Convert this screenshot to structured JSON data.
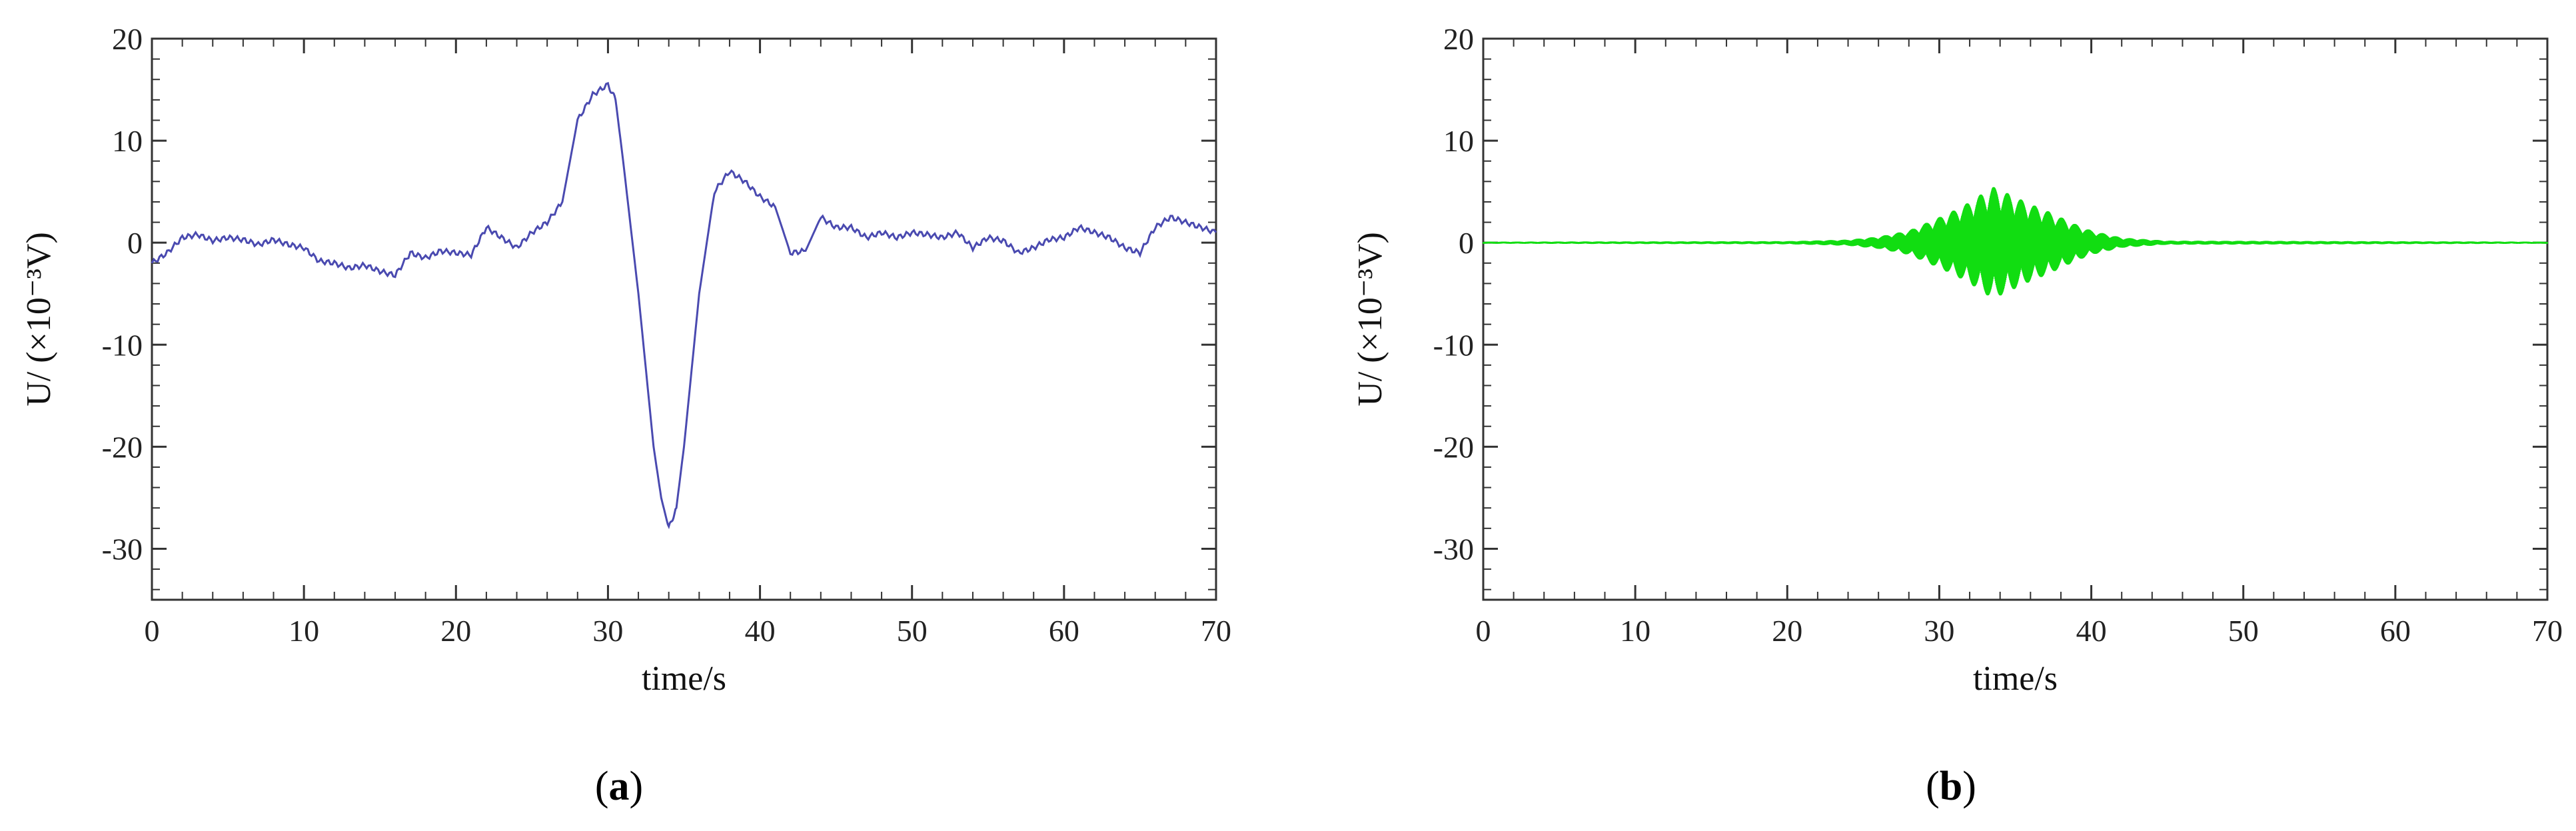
{
  "chart_data": [
    {
      "type": "line",
      "panel_label": "a",
      "xlabel": "time/s",
      "ylabel": "U/ (×10⁻³V)",
      "xlim": [
        0,
        70
      ],
      "ylim": [
        -35,
        20
      ],
      "xticks": [
        "0",
        "10",
        "20",
        "30",
        "40",
        "50",
        "60",
        "70"
      ],
      "yticks": [
        "20",
        "10",
        "0",
        "-10",
        "-20",
        "-30"
      ],
      "grid": false,
      "series": [
        {
          "color": "#4a4ab0",
          "x": [
            0,
            1,
            2,
            3,
            4,
            5,
            6,
            7,
            8,
            9,
            10,
            11,
            12,
            13,
            14,
            15,
            16,
            17,
            18,
            19,
            20,
            21,
            22,
            23,
            24,
            25,
            26,
            27,
            28,
            29,
            30,
            30.5,
            31,
            32,
            33,
            33.5,
            34,
            34.5,
            35,
            36,
            37,
            38,
            39,
            40,
            41,
            42,
            43,
            44,
            45,
            46,
            47,
            48,
            49,
            50,
            51,
            52,
            53,
            54,
            55,
            56,
            57,
            58,
            59,
            60,
            61,
            62,
            63,
            64,
            65,
            66,
            67,
            68,
            69,
            70
          ],
          "y": [
            -2,
            -1,
            0.5,
            0.8,
            0.2,
            0.5,
            0.3,
            -0.2,
            0.3,
            -0.2,
            -0.5,
            -1.8,
            -2,
            -2.5,
            -2.2,
            -2.8,
            -3.2,
            -1,
            -1.5,
            -0.8,
            -1,
            -1.2,
            1.5,
            0.5,
            -0.5,
            1,
            2,
            4,
            12,
            14.5,
            15.5,
            14,
            8,
            -5,
            -20,
            -25,
            -28,
            -26,
            -20,
            -5,
            5,
            7,
            6,
            4.5,
            3.5,
            -1,
            -0.8,
            2.5,
            1.5,
            1.5,
            0.5,
            1,
            0.5,
            1,
            0.8,
            0.5,
            1,
            -0.5,
            0.5,
            0.2,
            -1,
            -0.5,
            0.3,
            0.5,
            1.5,
            1,
            0.5,
            -0.5,
            -1,
            1.5,
            2.5,
            2,
            1.5,
            1
          ]
        }
      ]
    },
    {
      "type": "line",
      "panel_label": "b",
      "xlabel": "time/s",
      "ylabel": "U/ (×10⁻³V)",
      "xlim": [
        0,
        70
      ],
      "ylim": [
        -35,
        20
      ],
      "xticks": [
        "0",
        "10",
        "20",
        "30",
        "40",
        "50",
        "60",
        "70"
      ],
      "yticks": [
        "20",
        "10",
        "0",
        "-10",
        "-20",
        "-30"
      ],
      "grid": false,
      "series": [
        {
          "color": "#11dd11",
          "description": "high-frequency oscillation; envelope amplitude (×10⁻³V) vs time",
          "envelope_x": [
            0,
            20,
            24,
            26,
            28,
            30,
            31,
            32,
            33,
            33.5,
            34,
            35,
            36,
            37,
            38,
            39,
            40,
            42,
            45,
            70
          ],
          "envelope_y": [
            0.1,
            0.15,
            0.3,
            0.6,
            1.2,
            2.5,
            3.2,
            4,
            5,
            5.5,
            5.2,
            4.5,
            3.8,
            3.2,
            2.5,
            1.8,
            1.2,
            0.5,
            0.2,
            0.1
          ]
        }
      ]
    }
  ]
}
